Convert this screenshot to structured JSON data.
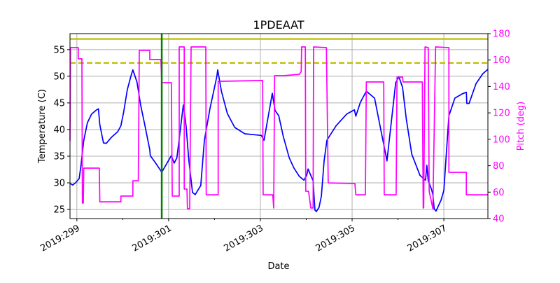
{
  "chart_data": {
    "type": "line",
    "title": "1PDEAAT",
    "xlabel": "Date",
    "ylabel": "Temperature (C)",
    "y2label": "Pitch (deg)",
    "xlim": [
      298.85,
      307.96
    ],
    "ylim": [
      23.3,
      58.0
    ],
    "y2lim": [
      40,
      180
    ],
    "grid": true,
    "xticks": [
      299,
      301,
      303,
      305,
      307
    ],
    "xtick_labels": [
      "2019:299",
      "2019:301",
      "2019:303",
      "2019:305",
      "2019:307"
    ],
    "xminor_ticks": [
      300,
      302,
      304,
      306
    ],
    "yticks": [
      25,
      30,
      35,
      40,
      45,
      50,
      55
    ],
    "y2ticks": [
      40,
      60,
      80,
      100,
      120,
      140,
      160,
      180
    ],
    "colors": {
      "temperature": "#0000ff",
      "pitch": "#ff00ff",
      "limit": "#bfbf00",
      "marker": "#008000",
      "grid": "#b0b0b0"
    },
    "hlines": [
      {
        "y": 57.0,
        "style": "solid"
      },
      {
        "y": 52.5,
        "style": "dashed"
      }
    ],
    "vlines": [
      {
        "x": 300.85
      }
    ],
    "series": [
      {
        "axis": "left",
        "points": [
          [
            298.85,
            29.9
          ],
          [
            298.91,
            29.6
          ],
          [
            298.97,
            30.0
          ],
          [
            299.05,
            30.8
          ],
          [
            299.09,
            33.3
          ],
          [
            299.15,
            38.0
          ],
          [
            299.23,
            41.3
          ],
          [
            299.32,
            42.9
          ],
          [
            299.43,
            43.7
          ],
          [
            299.47,
            43.9
          ],
          [
            299.5,
            40.9
          ],
          [
            299.58,
            37.5
          ],
          [
            299.64,
            37.4
          ],
          [
            299.76,
            38.6
          ],
          [
            299.89,
            39.6
          ],
          [
            299.96,
            40.7
          ],
          [
            300.02,
            43.3
          ],
          [
            300.1,
            47.5
          ],
          [
            300.18,
            50.1
          ],
          [
            300.22,
            51.2
          ],
          [
            300.31,
            48.9
          ],
          [
            300.39,
            44.6
          ],
          [
            300.48,
            40.9
          ],
          [
            300.59,
            36.2
          ],
          [
            300.6,
            35.1
          ],
          [
            300.71,
            33.8
          ],
          [
            300.85,
            32.0
          ],
          [
            301.06,
            35.1
          ],
          [
            301.12,
            33.7
          ],
          [
            301.18,
            34.7
          ],
          [
            301.32,
            44.6
          ],
          [
            301.38,
            40.7
          ],
          [
            301.44,
            34.3
          ],
          [
            301.52,
            28.2
          ],
          [
            301.58,
            27.8
          ],
          [
            301.7,
            29.5
          ],
          [
            301.78,
            38.0
          ],
          [
            301.9,
            43.9
          ],
          [
            302.05,
            49.9
          ],
          [
            302.07,
            51.2
          ],
          [
            302.15,
            47.2
          ],
          [
            302.28,
            43.0
          ],
          [
            302.44,
            40.4
          ],
          [
            302.66,
            39.2
          ],
          [
            303.02,
            38.9
          ],
          [
            303.08,
            38.0
          ],
          [
            303.26,
            46.8
          ],
          [
            303.32,
            43.6
          ],
          [
            303.4,
            42.6
          ],
          [
            303.5,
            38.7
          ],
          [
            303.63,
            34.7
          ],
          [
            303.73,
            32.8
          ],
          [
            303.85,
            31.2
          ],
          [
            303.95,
            30.5
          ],
          [
            304.01,
            31.4
          ],
          [
            304.04,
            32.6
          ],
          [
            304.1,
            31.4
          ],
          [
            304.15,
            30.4
          ],
          [
            304.19,
            24.9
          ],
          [
            304.22,
            24.6
          ],
          [
            304.28,
            25.4
          ],
          [
            304.33,
            27.5
          ],
          [
            304.39,
            34.1
          ],
          [
            304.45,
            38.0
          ],
          [
            304.65,
            40.7
          ],
          [
            304.88,
            42.9
          ],
          [
            305.05,
            43.7
          ],
          [
            305.08,
            42.5
          ],
          [
            305.18,
            45.1
          ],
          [
            305.31,
            47.2
          ],
          [
            305.49,
            45.9
          ],
          [
            305.64,
            39.3
          ],
          [
            305.72,
            35.9
          ],
          [
            305.76,
            34.1
          ],
          [
            305.95,
            48.8
          ],
          [
            306.02,
            49.9
          ],
          [
            306.1,
            47.9
          ],
          [
            306.18,
            42.0
          ],
          [
            306.3,
            35.4
          ],
          [
            306.48,
            31.4
          ],
          [
            306.6,
            30.5
          ],
          [
            306.63,
            33.3
          ],
          [
            306.66,
            30.4
          ],
          [
            306.73,
            28.8
          ],
          [
            306.76,
            27.8
          ],
          [
            306.79,
            25.1
          ],
          [
            306.83,
            24.7
          ],
          [
            306.94,
            26.8
          ],
          [
            307.0,
            28.6
          ],
          [
            307.11,
            42.6
          ],
          [
            307.24,
            45.9
          ],
          [
            307.4,
            46.7
          ],
          [
            307.49,
            47.0
          ],
          [
            307.5,
            44.9
          ],
          [
            307.55,
            44.9
          ],
          [
            307.7,
            48.6
          ],
          [
            307.85,
            50.5
          ],
          [
            307.96,
            51.3
          ]
        ]
      },
      {
        "axis": "right",
        "points": [
          [
            298.85,
            99
          ],
          [
            298.86,
            169.4
          ],
          [
            299.03,
            169.4
          ],
          [
            299.03,
            160.9
          ],
          [
            299.11,
            160.9
          ],
          [
            299.12,
            51.7
          ],
          [
            299.14,
            51.7
          ],
          [
            299.15,
            78.2
          ],
          [
            299.49,
            78.2
          ],
          [
            299.5,
            52.7
          ],
          [
            299.96,
            52.7
          ],
          [
            299.96,
            57.0
          ],
          [
            300.22,
            57.0
          ],
          [
            300.22,
            68.6
          ],
          [
            300.34,
            68.6
          ],
          [
            300.36,
            167.3
          ],
          [
            300.59,
            167.3
          ],
          [
            300.59,
            160.4
          ],
          [
            300.83,
            160.4
          ],
          [
            300.85,
            142.9
          ],
          [
            301.06,
            142.9
          ],
          [
            301.08,
            57.0
          ],
          [
            301.23,
            57.0
          ],
          [
            301.23,
            169.9
          ],
          [
            301.34,
            169.9
          ],
          [
            301.34,
            62.3
          ],
          [
            301.4,
            62.3
          ],
          [
            301.41,
            47.4
          ],
          [
            301.46,
            47.4
          ],
          [
            301.49,
            169.9
          ],
          [
            301.81,
            169.9
          ],
          [
            301.82,
            58.0
          ],
          [
            302.08,
            58.0
          ],
          [
            302.08,
            143.9
          ],
          [
            303.05,
            144.5
          ],
          [
            303.06,
            58.0
          ],
          [
            303.27,
            58.0
          ],
          [
            303.29,
            48.0
          ],
          [
            303.31,
            148.2
          ],
          [
            303.5,
            148.2
          ],
          [
            303.85,
            149.2
          ],
          [
            303.89,
            151.4
          ],
          [
            303.9,
            169.9
          ],
          [
            303.98,
            169.9
          ],
          [
            303.99,
            60.7
          ],
          [
            304.05,
            60.7
          ],
          [
            304.1,
            48.0
          ],
          [
            304.15,
            48.0
          ],
          [
            304.16,
            169.9
          ],
          [
            304.44,
            169.4
          ],
          [
            304.48,
            67.0
          ],
          [
            305.06,
            66.5
          ],
          [
            305.08,
            58.0
          ],
          [
            305.29,
            58.0
          ],
          [
            305.31,
            143.4
          ],
          [
            305.69,
            143.4
          ],
          [
            305.7,
            58.0
          ],
          [
            305.96,
            58.0
          ],
          [
            305.98,
            147.1
          ],
          [
            306.1,
            147.1
          ],
          [
            306.11,
            143.4
          ],
          [
            306.53,
            143.4
          ],
          [
            306.55,
            48.0
          ],
          [
            306.56,
            48.0
          ],
          [
            306.59,
            169.9
          ],
          [
            306.66,
            169.4
          ],
          [
            306.68,
            60.7
          ],
          [
            306.76,
            47.4
          ],
          [
            306.82,
            169.9
          ],
          [
            307.11,
            169.4
          ],
          [
            307.11,
            75.0
          ],
          [
            307.49,
            75.0
          ],
          [
            307.49,
            58.0
          ],
          [
            307.96,
            58.0
          ]
        ]
      }
    ]
  }
}
